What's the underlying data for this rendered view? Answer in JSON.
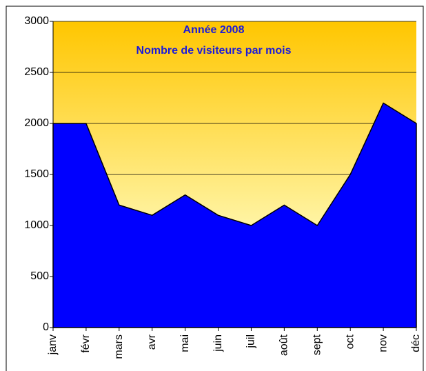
{
  "chart_data": {
    "type": "area",
    "title": "Année 2008",
    "subtitle": "Nombre de visiteurs par mois",
    "categories": [
      "janv",
      "févr",
      "mars",
      "avr",
      "mai",
      "juin",
      "juil",
      "août",
      "sept",
      "oct",
      "nov",
      "déc"
    ],
    "values": [
      2000,
      2000,
      1200,
      1100,
      1300,
      1100,
      1000,
      1200,
      1000,
      1500,
      2200,
      2000
    ],
    "color": "#0000ff",
    "ylim": [
      0,
      3000
    ],
    "yticks": [
      0,
      500,
      1000,
      1500,
      2000,
      2500,
      3000
    ],
    "grid": true
  }
}
